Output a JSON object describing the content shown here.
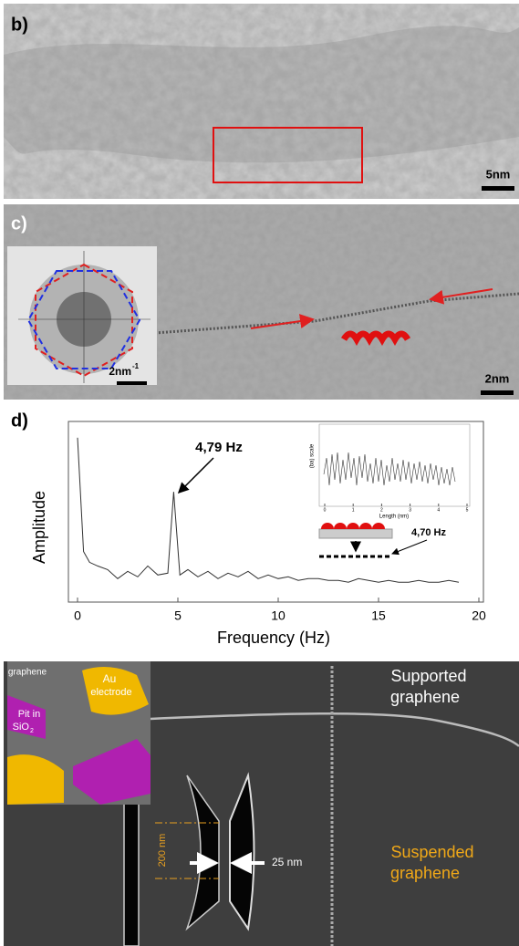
{
  "panels": {
    "b": {
      "label": "b)",
      "scale": "5nm"
    },
    "c": {
      "label": "c)",
      "scale": "2nm",
      "inset_scale": "2nm",
      "inset_scale_sup": "-1"
    },
    "d": {
      "label": "d)"
    },
    "e": {
      "inset_graphene": "graphene",
      "inset_au": "Au",
      "inset_electrode": "electrode",
      "inset_pit": "Pit in",
      "inset_sio": "SiO",
      "inset_sio_sub": "2",
      "supported_1": "Supported",
      "supported_2": "graphene",
      "suspended_1": "Suspended",
      "suspended_2": "graphene",
      "height": "200 nm",
      "gap": "25 nm"
    }
  },
  "chart_data": {
    "type": "line",
    "xlabel": "Frequency (Hz)",
    "ylabel": "Amplitude",
    "color": "#333333",
    "x": [
      0,
      0.3,
      0.6,
      1,
      1.5,
      2,
      2.5,
      3,
      3.5,
      4,
      4.5,
      4.79,
      5.1,
      5.5,
      6,
      6.5,
      7,
      7.5,
      8,
      8.5,
      9,
      9.5,
      10,
      10.5,
      11,
      11.5,
      12,
      12.5,
      13,
      13.5,
      14,
      14.5,
      15,
      15.5,
      16,
      16.5,
      17,
      17.5,
      18,
      18.5,
      19
    ],
    "values": [
      0.91,
      0.28,
      0.22,
      0.2,
      0.18,
      0.13,
      0.17,
      0.14,
      0.2,
      0.15,
      0.16,
      0.61,
      0.15,
      0.18,
      0.14,
      0.17,
      0.13,
      0.16,
      0.14,
      0.17,
      0.13,
      0.15,
      0.13,
      0.14,
      0.12,
      0.13,
      0.13,
      0.12,
      0.12,
      0.11,
      0.13,
      0.12,
      0.11,
      0.12,
      0.11,
      0.11,
      0.12,
      0.11,
      0.11,
      0.12,
      0.11
    ],
    "xlim": [
      0,
      20
    ],
    "xticks": [
      0,
      5,
      10,
      15,
      20
    ],
    "ylim": [
      0,
      1
    ],
    "annotations": [
      "4,79 Hz",
      "4,70 Hz"
    ],
    "inset": {
      "xlabel": "Length (nm)",
      "ylabel": "(ba) scale",
      "xticks": [
        0,
        1,
        2,
        3,
        4,
        5
      ]
    }
  }
}
